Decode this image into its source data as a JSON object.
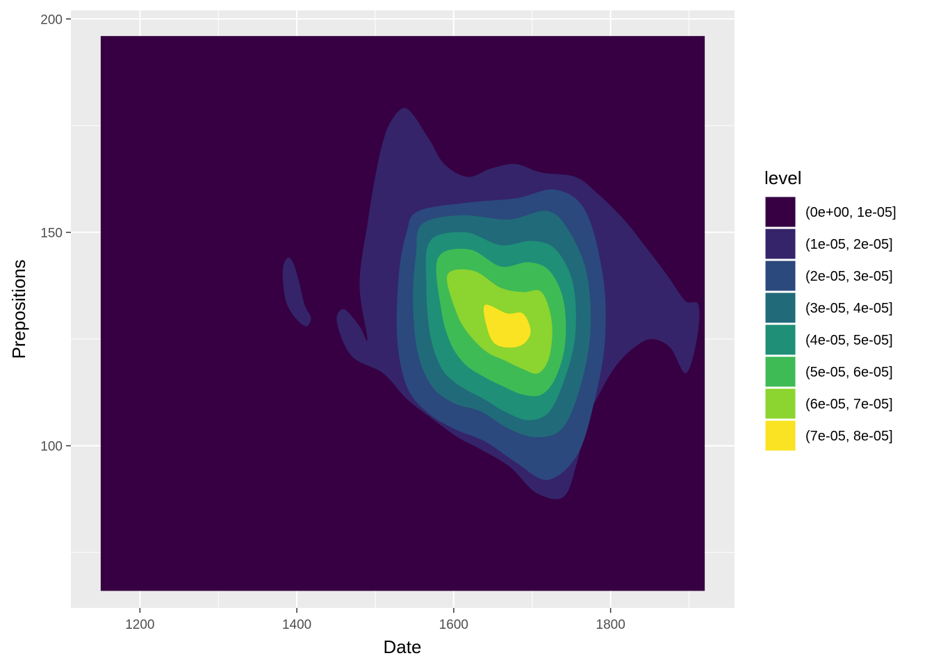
{
  "chart_data": {
    "type": "contour",
    "title": "",
    "xlabel": "Date",
    "ylabel": "Prepositions",
    "xlim": [
      1112,
      1958
    ],
    "ylim": [
      62,
      202
    ],
    "x_ticks": [
      1200,
      1400,
      1600,
      1800
    ],
    "y_ticks": [
      100,
      150,
      200
    ],
    "grid": true,
    "legend": {
      "title": "level",
      "position": "right",
      "entries": [
        {
          "label": "(0e+00, 1e-05]",
          "color": "#360042"
        },
        {
          "label": "(1e-05, 2e-05]",
          "color": "#35246A"
        },
        {
          "label": "(2e-05, 3e-05]",
          "color": "#2B497C"
        },
        {
          "label": "(3e-05, 4e-05]",
          "color": "#216A7A"
        },
        {
          "label": "(4e-05, 5e-05]",
          "color": "#1F8F77"
        },
        {
          "label": "(5e-05, 6e-05]",
          "color": "#3FBB56"
        },
        {
          "label": "(6e-05, 7e-05]",
          "color": "#8CD42F"
        },
        {
          "label": "(7e-05, 8e-05]",
          "color": "#FAE322"
        }
      ]
    },
    "density_region": {
      "x": [
        1150,
        1920
      ],
      "y": [
        66,
        196
      ]
    },
    "contours": [
      {
        "level": 1,
        "points": [
          [
            1490,
            125
          ],
          [
            1480,
            138
          ],
          [
            1491,
            153
          ],
          [
            1498,
            161
          ],
          [
            1508,
            170
          ],
          [
            1520,
            176
          ],
          [
            1540,
            179
          ],
          [
            1568,
            172
          ],
          [
            1588,
            166
          ],
          [
            1618,
            163
          ],
          [
            1648,
            165
          ],
          [
            1679,
            166
          ],
          [
            1712,
            164
          ],
          [
            1755,
            163
          ],
          [
            1784,
            159
          ],
          [
            1817,
            153
          ],
          [
            1843,
            147
          ],
          [
            1872,
            140
          ],
          [
            1895,
            134
          ],
          [
            1912,
            133
          ],
          [
            1910,
            125
          ],
          [
            1896,
            117
          ],
          [
            1876,
            123
          ],
          [
            1852,
            125
          ],
          [
            1830,
            123
          ],
          [
            1808,
            119
          ],
          [
            1788,
            113
          ],
          [
            1770,
            106
          ],
          [
            1757,
            96
          ],
          [
            1740,
            88
          ],
          [
            1705,
            89
          ],
          [
            1672,
            95
          ],
          [
            1636,
            99
          ],
          [
            1605,
            102
          ],
          [
            1575,
            106
          ],
          [
            1540,
            111
          ],
          [
            1510,
            117
          ],
          [
            1470,
            121
          ],
          [
            1451,
            129
          ],
          [
            1460,
            132
          ],
          [
            1480,
            128
          ]
        ]
      },
      {
        "level": 1,
        "points": [
          [
            1382,
            141
          ],
          [
            1388,
            144
          ],
          [
            1395,
            143
          ],
          [
            1402,
            139
          ],
          [
            1410,
            133
          ],
          [
            1418,
            130
          ],
          [
            1412,
            128
          ],
          [
            1398,
            130
          ],
          [
            1386,
            134
          ]
        ]
      },
      {
        "level": 2,
        "points": [
          [
            1555,
            155
          ],
          [
            1620,
            157
          ],
          [
            1680,
            158
          ],
          [
            1730,
            160
          ],
          [
            1768,
            155
          ],
          [
            1790,
            140
          ],
          [
            1793,
            125
          ],
          [
            1780,
            111
          ],
          [
            1758,
            98
          ],
          [
            1720,
            92
          ],
          [
            1680,
            96
          ],
          [
            1640,
            101
          ],
          [
            1600,
            104
          ],
          [
            1565,
            108
          ],
          [
            1540,
            114
          ],
          [
            1528,
            125
          ],
          [
            1530,
            140
          ],
          [
            1540,
            150
          ]
        ]
      },
      {
        "level": 3,
        "points": [
          [
            1560,
            152
          ],
          [
            1610,
            154
          ],
          [
            1670,
            153
          ],
          [
            1720,
            155
          ],
          [
            1748,
            150
          ],
          [
            1770,
            140
          ],
          [
            1774,
            126
          ],
          [
            1760,
            113
          ],
          [
            1738,
            104
          ],
          [
            1705,
            102
          ],
          [
            1670,
            104
          ],
          [
            1635,
            108
          ],
          [
            1600,
            110
          ],
          [
            1572,
            114
          ],
          [
            1554,
            122
          ],
          [
            1548,
            134
          ],
          [
            1552,
            145
          ]
        ]
      },
      {
        "level": 4,
        "points": [
          [
            1570,
            148
          ],
          [
            1615,
            150
          ],
          [
            1660,
            147
          ],
          [
            1700,
            148
          ],
          [
            1730,
            146
          ],
          [
            1752,
            138
          ],
          [
            1755,
            126
          ],
          [
            1742,
            116
          ],
          [
            1722,
            108
          ],
          [
            1695,
            106
          ],
          [
            1665,
            108
          ],
          [
            1638,
            111
          ],
          [
            1608,
            114
          ],
          [
            1585,
            118
          ],
          [
            1570,
            126
          ],
          [
            1565,
            138
          ]
        ]
      },
      {
        "level": 5,
        "points": [
          [
            1580,
            144
          ],
          [
            1620,
            146
          ],
          [
            1660,
            142
          ],
          [
            1695,
            143
          ],
          [
            1722,
            141
          ],
          [
            1740,
            134
          ],
          [
            1742,
            124
          ],
          [
            1730,
            116
          ],
          [
            1712,
            112
          ],
          [
            1688,
            112
          ],
          [
            1662,
            114
          ],
          [
            1640,
            116
          ],
          [
            1615,
            119
          ],
          [
            1596,
            124
          ],
          [
            1584,
            132
          ]
        ]
      },
      {
        "level": 6,
        "points": [
          [
            1592,
            140
          ],
          [
            1625,
            141
          ],
          [
            1660,
            137
          ],
          [
            1688,
            136
          ],
          [
            1712,
            136
          ],
          [
            1725,
            129
          ],
          [
            1722,
            121
          ],
          [
            1708,
            117
          ],
          [
            1688,
            118
          ],
          [
            1665,
            120
          ],
          [
            1642,
            122
          ],
          [
            1620,
            126
          ],
          [
            1604,
            131
          ]
        ]
      },
      {
        "level": 7,
        "points": [
          [
            1640,
            133
          ],
          [
            1668,
            131
          ],
          [
            1688,
            131
          ],
          [
            1698,
            127
          ],
          [
            1690,
            124
          ],
          [
            1672,
            123
          ],
          [
            1652,
            124
          ],
          [
            1642,
            128
          ]
        ]
      }
    ]
  }
}
